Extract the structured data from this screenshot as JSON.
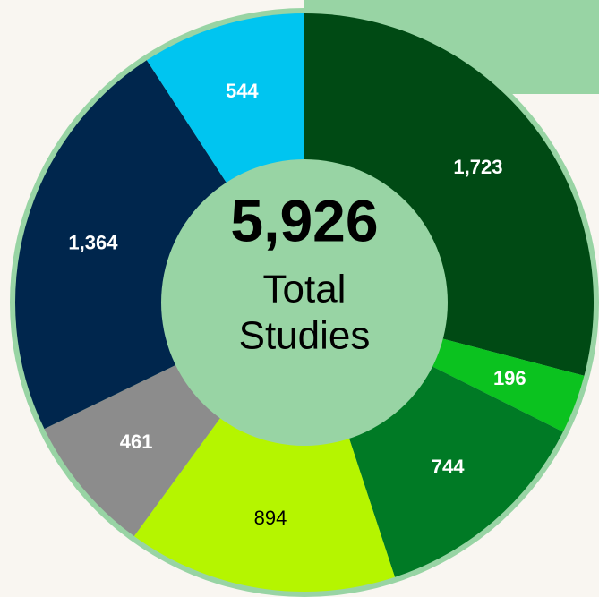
{
  "chart_data": {
    "type": "pie",
    "values": [
      1723,
      196,
      744,
      894,
      461,
      1364,
      544
    ],
    "value_labels": [
      "1,723",
      "196",
      "744",
      "894",
      "461",
      "1,364",
      "544"
    ],
    "colors": [
      "#004a14",
      "#0bc21f",
      "#007a25",
      "#b5f500",
      "#8c8c8c",
      "#00264d",
      "#00c5f0"
    ],
    "total": {
      "value": 5926,
      "label": "5,926"
    },
    "center_text": [
      "Total",
      "Studies"
    ]
  }
}
